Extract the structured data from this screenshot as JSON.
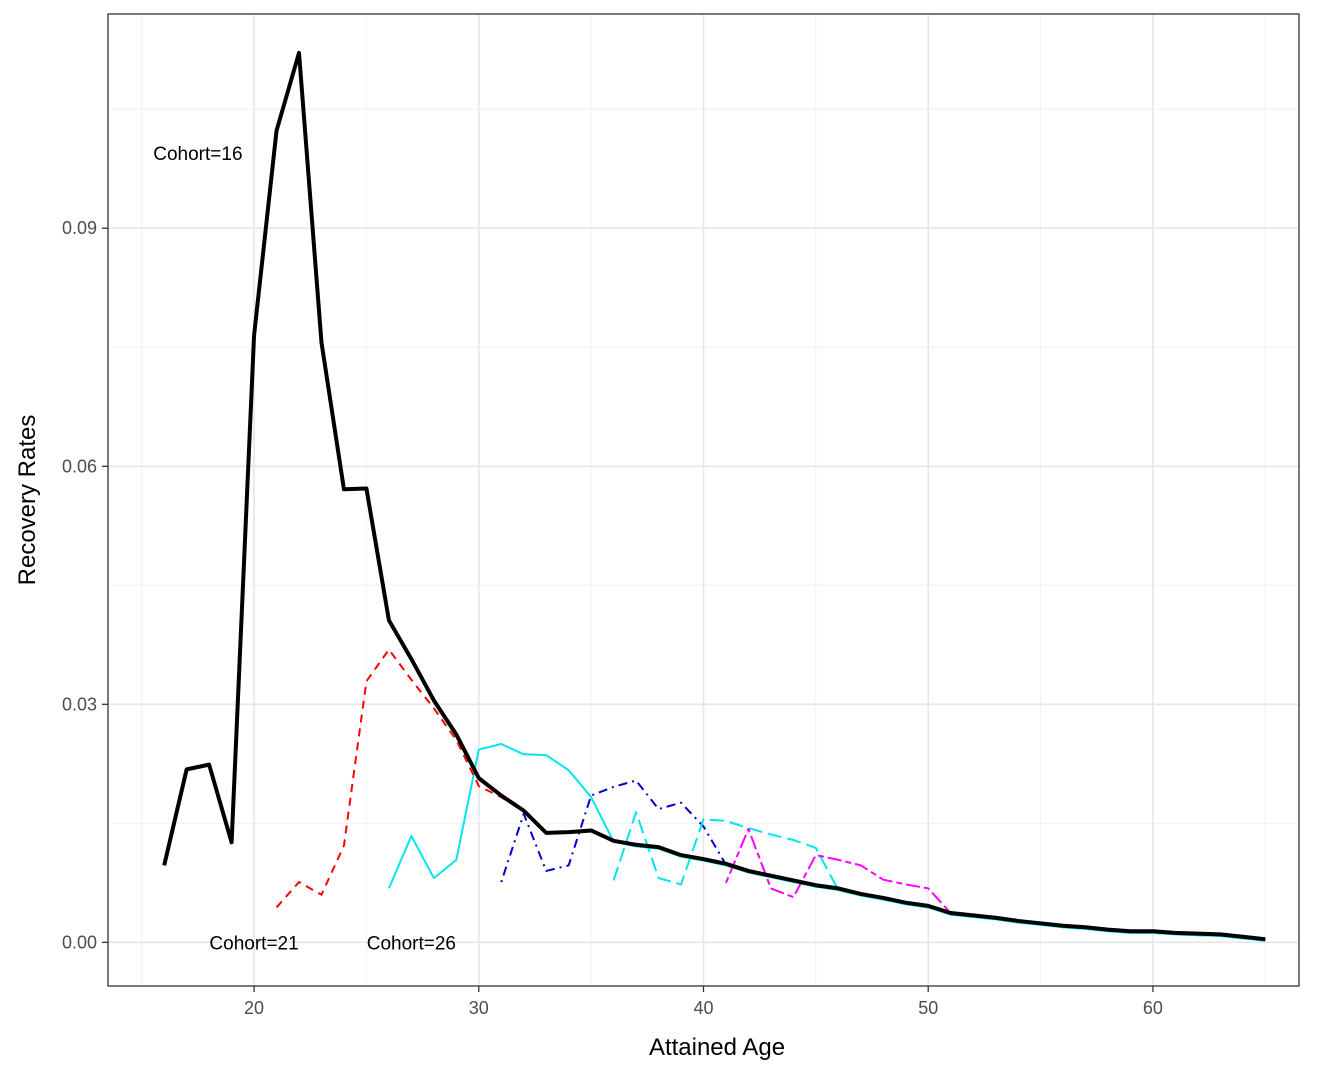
{
  "chart_data": {
    "type": "line",
    "title": "",
    "xlabel": "Attained Age",
    "ylabel": "Recovery Rates",
    "xlim": [
      13.5,
      66.5
    ],
    "ylim": [
      -0.0055,
      0.117
    ],
    "x_ticks": [
      20,
      30,
      40,
      50,
      60
    ],
    "y_ticks": [
      0.0,
      0.03,
      0.06,
      0.09
    ],
    "y_tick_labels": [
      "0.00",
      "0.03",
      "0.06",
      "0.09"
    ],
    "grid": true,
    "legend": "none",
    "annotations": [
      {
        "text": "Cohort=16",
        "x": 17.5,
        "y": 0.0995
      },
      {
        "text": "Cohort=21",
        "x": 20.0,
        "y": 0.0
      },
      {
        "text": "Cohort=26",
        "x": 27.0,
        "y": 0.0
      }
    ],
    "series": [
      {
        "color": "#000000",
        "dash": "solid",
        "width": 4,
        "x": [
          16,
          17,
          18,
          19,
          20,
          21,
          22,
          23,
          24,
          25,
          26,
          27,
          28,
          29,
          30,
          31,
          32,
          33,
          34,
          35,
          36,
          37,
          38,
          39,
          40,
          41,
          42,
          43,
          44,
          45,
          46,
          47,
          48,
          49,
          50,
          51,
          52,
          53,
          54,
          55,
          56,
          57,
          58,
          59,
          60,
          61,
          62,
          63,
          64,
          65
        ],
        "values": [
          0.0097,
          0.0218,
          0.0224,
          0.0126,
          0.0765,
          0.1023,
          0.1121,
          0.0756,
          0.0571,
          0.0572,
          0.0406,
          0.0357,
          0.0305,
          0.0262,
          0.0207,
          0.0185,
          0.0166,
          0.0138,
          0.0139,
          0.0141,
          0.0128,
          0.0123,
          0.012,
          0.011,
          0.0105,
          0.0099,
          0.009,
          0.0084,
          0.0078,
          0.0072,
          0.0068,
          0.0061,
          0.0056,
          0.005,
          0.0046,
          0.0037,
          0.0034,
          0.0031,
          0.0027,
          0.0024,
          0.0021,
          0.0019,
          0.0016,
          0.0014,
          0.0014,
          0.0012,
          0.0011,
          0.001,
          0.0007,
          0.0004
        ]
      },
      {
        "color": "#ff0000",
        "dash": "dashed",
        "width": 2,
        "x": [
          21,
          22,
          23,
          24,
          25,
          26,
          27,
          28,
          29,
          30,
          31,
          32,
          33,
          34,
          35,
          36,
          37,
          38,
          39,
          40,
          41,
          42,
          43,
          44,
          45,
          46,
          47,
          48,
          49,
          50,
          51,
          52,
          53,
          54,
          55,
          56,
          57,
          58,
          59,
          60,
          61,
          62,
          63,
          64,
          65
        ],
        "values": [
          0.0044,
          0.0076,
          0.006,
          0.0122,
          0.0329,
          0.0369,
          0.0331,
          0.0295,
          0.0255,
          0.0197,
          0.0183,
          0.0165,
          0.0137,
          0.0138,
          0.014,
          0.0127,
          0.0122,
          0.0119,
          0.0109,
          0.0104,
          0.0098,
          0.0089,
          0.0083,
          0.0077,
          0.0071,
          0.0067,
          0.006,
          0.0055,
          0.0049,
          0.0045,
          0.0036,
          0.0033,
          0.003,
          0.0026,
          0.0023,
          0.002,
          0.0018,
          0.0015,
          0.0013,
          0.0013,
          0.0011,
          0.001,
          0.0009,
          0.0006,
          0.0003
        ]
      },
      {
        "color": "#00e5ee",
        "dash": "solid",
        "width": 2,
        "x": [
          26,
          27,
          28,
          29,
          30,
          31,
          32,
          33,
          34,
          35,
          36,
          37,
          38,
          39,
          40,
          41,
          42,
          43,
          44,
          45,
          46,
          47,
          48,
          49,
          50,
          51,
          52,
          53,
          54,
          55,
          56,
          57,
          58,
          59,
          60,
          61,
          62,
          63,
          64,
          65
        ],
        "values": [
          0.0068,
          0.0134,
          0.0081,
          0.0104,
          0.0243,
          0.025,
          0.0237,
          0.0236,
          0.0217,
          0.0183,
          0.0127,
          0.0121,
          0.0118,
          0.0108,
          0.0103,
          0.0097,
          0.0088,
          0.0082,
          0.0076,
          0.007,
          0.0066,
          0.0059,
          0.0054,
          0.0048,
          0.0044,
          0.0035,
          0.0032,
          0.0029,
          0.0025,
          0.0022,
          0.0019,
          0.0017,
          0.0014,
          0.0012,
          0.0012,
          0.001,
          0.0009,
          0.0008,
          0.0005,
          0.0002
        ]
      },
      {
        "color": "#0000cd",
        "dash": "dotdash",
        "width": 2,
        "x": [
          31,
          32,
          33,
          34,
          35,
          36,
          37,
          38,
          39,
          40,
          41,
          42,
          43,
          44,
          45,
          46,
          47,
          48,
          49,
          50,
          51,
          52,
          53,
          54,
          55,
          56,
          57,
          58,
          59,
          60,
          61,
          62,
          63,
          64,
          65
        ],
        "values": [
          0.0076,
          0.0162,
          0.009,
          0.0097,
          0.0185,
          0.0196,
          0.0204,
          0.0168,
          0.0176,
          0.0146,
          0.0098,
          0.0089,
          0.0083,
          0.0077,
          0.0071,
          0.0067,
          0.006,
          0.0055,
          0.0049,
          0.0045,
          0.0036,
          0.0033,
          0.003,
          0.0026,
          0.0023,
          0.002,
          0.0018,
          0.0015,
          0.0013,
          0.0013,
          0.0011,
          0.001,
          0.0009,
          0.0006,
          0.0003
        ]
      },
      {
        "color": "#00e5ee",
        "dash": "longdash",
        "width": 2,
        "x": [
          36,
          37,
          38,
          39,
          40,
          41,
          42,
          43,
          44,
          45,
          46,
          47,
          48,
          49,
          50,
          51,
          52,
          53,
          54,
          55,
          56,
          57,
          58,
          59,
          60,
          61,
          62,
          63,
          64,
          65
        ],
        "values": [
          0.0078,
          0.0164,
          0.0081,
          0.0073,
          0.0155,
          0.0153,
          0.0144,
          0.0136,
          0.0129,
          0.0119,
          0.0066,
          0.0059,
          0.0054,
          0.0048,
          0.0044,
          0.0035,
          0.0032,
          0.0029,
          0.0025,
          0.0022,
          0.0019,
          0.0017,
          0.0014,
          0.0012,
          0.0012,
          0.001,
          0.0009,
          0.0008,
          0.0005,
          0.0002
        ]
      },
      {
        "color": "#ff00ff",
        "dash": "twodash",
        "width": 2,
        "x": [
          41,
          42,
          43,
          44,
          45,
          46,
          47,
          48,
          49,
          50,
          51,
          52,
          53,
          54,
          55,
          56,
          57,
          58,
          59,
          60,
          61,
          62,
          63,
          64,
          65
        ],
        "values": [
          0.0075,
          0.0143,
          0.0068,
          0.0057,
          0.011,
          0.0104,
          0.0097,
          0.0079,
          0.0073,
          0.0068,
          0.0037,
          0.0034,
          0.0031,
          0.0027,
          0.0024,
          0.0021,
          0.0019,
          0.0016,
          0.0014,
          0.0014,
          0.0012,
          0.0011,
          0.001,
          0.0007,
          0.0004
        ]
      }
    ]
  }
}
